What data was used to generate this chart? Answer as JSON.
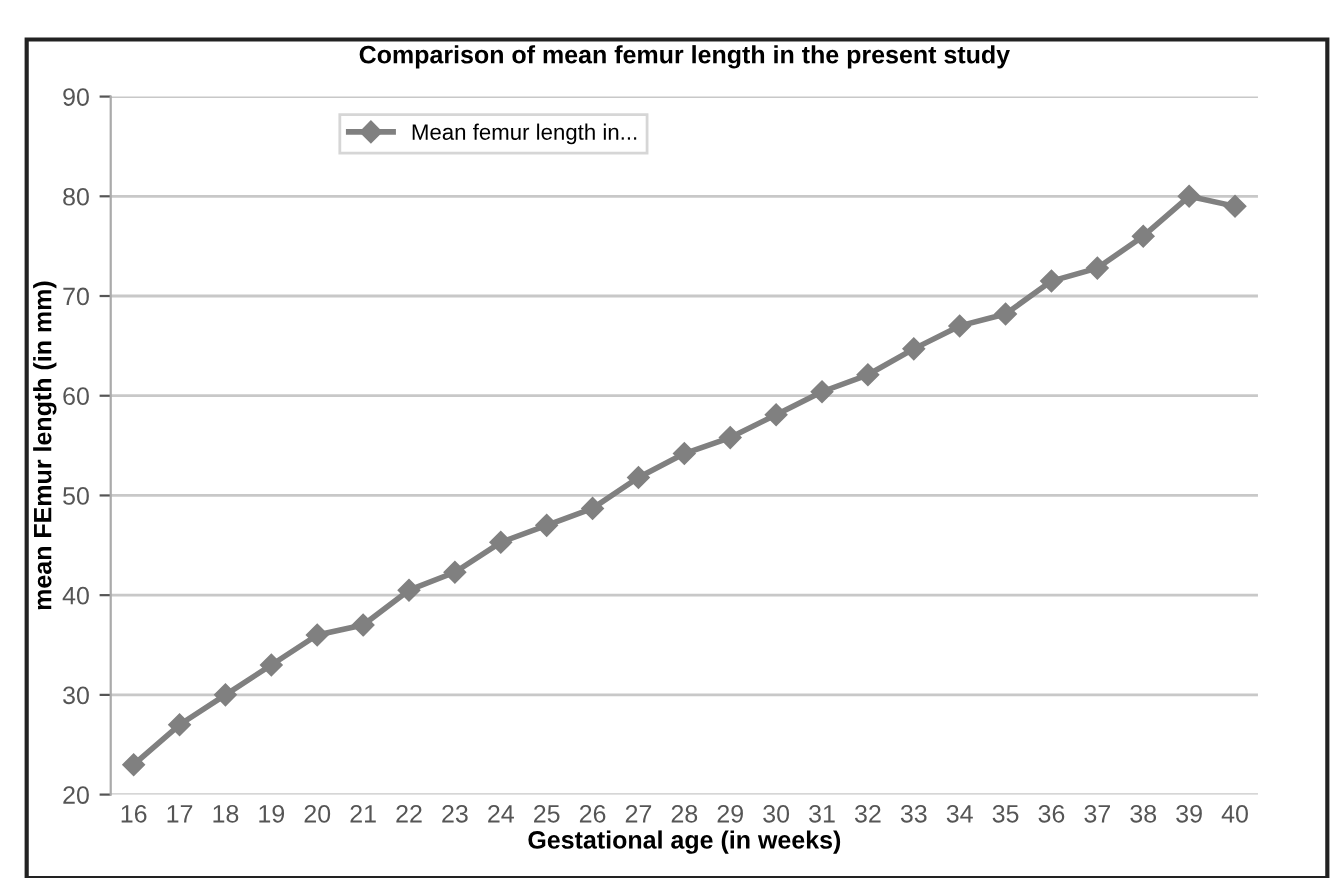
{
  "chart_data": {
    "type": "line",
    "title": "Comparison of mean femur length in the present study",
    "xlabel": "Gestational age (in weeks)",
    "ylabel": "mean FEmur length (in mm)",
    "categories": [
      "16",
      "17",
      "18",
      "19",
      "20",
      "21",
      "22",
      "23",
      "24",
      "25",
      "26",
      "27",
      "28",
      "29",
      "30",
      "31",
      "32",
      "33",
      "34",
      "35",
      "36",
      "37",
      "38",
      "39",
      "40"
    ],
    "series": [
      {
        "name": "Mean femur length in...",
        "color": "#808080",
        "values": [
          23,
          27,
          30,
          33,
          36,
          37,
          40.5,
          42.3,
          45.3,
          47,
          48.7,
          51.8,
          54.2,
          55.8,
          58.1,
          60.4,
          62.1,
          64.7,
          67,
          68.2,
          71.5,
          72.8,
          76,
          80,
          79
        ]
      }
    ],
    "ylim": [
      20,
      90
    ],
    "yticks": [
      20,
      30,
      40,
      50,
      60,
      70,
      80,
      90
    ],
    "grid": "y",
    "legend": "top left",
    "marker": "diamond",
    "line_style": "solid"
  }
}
